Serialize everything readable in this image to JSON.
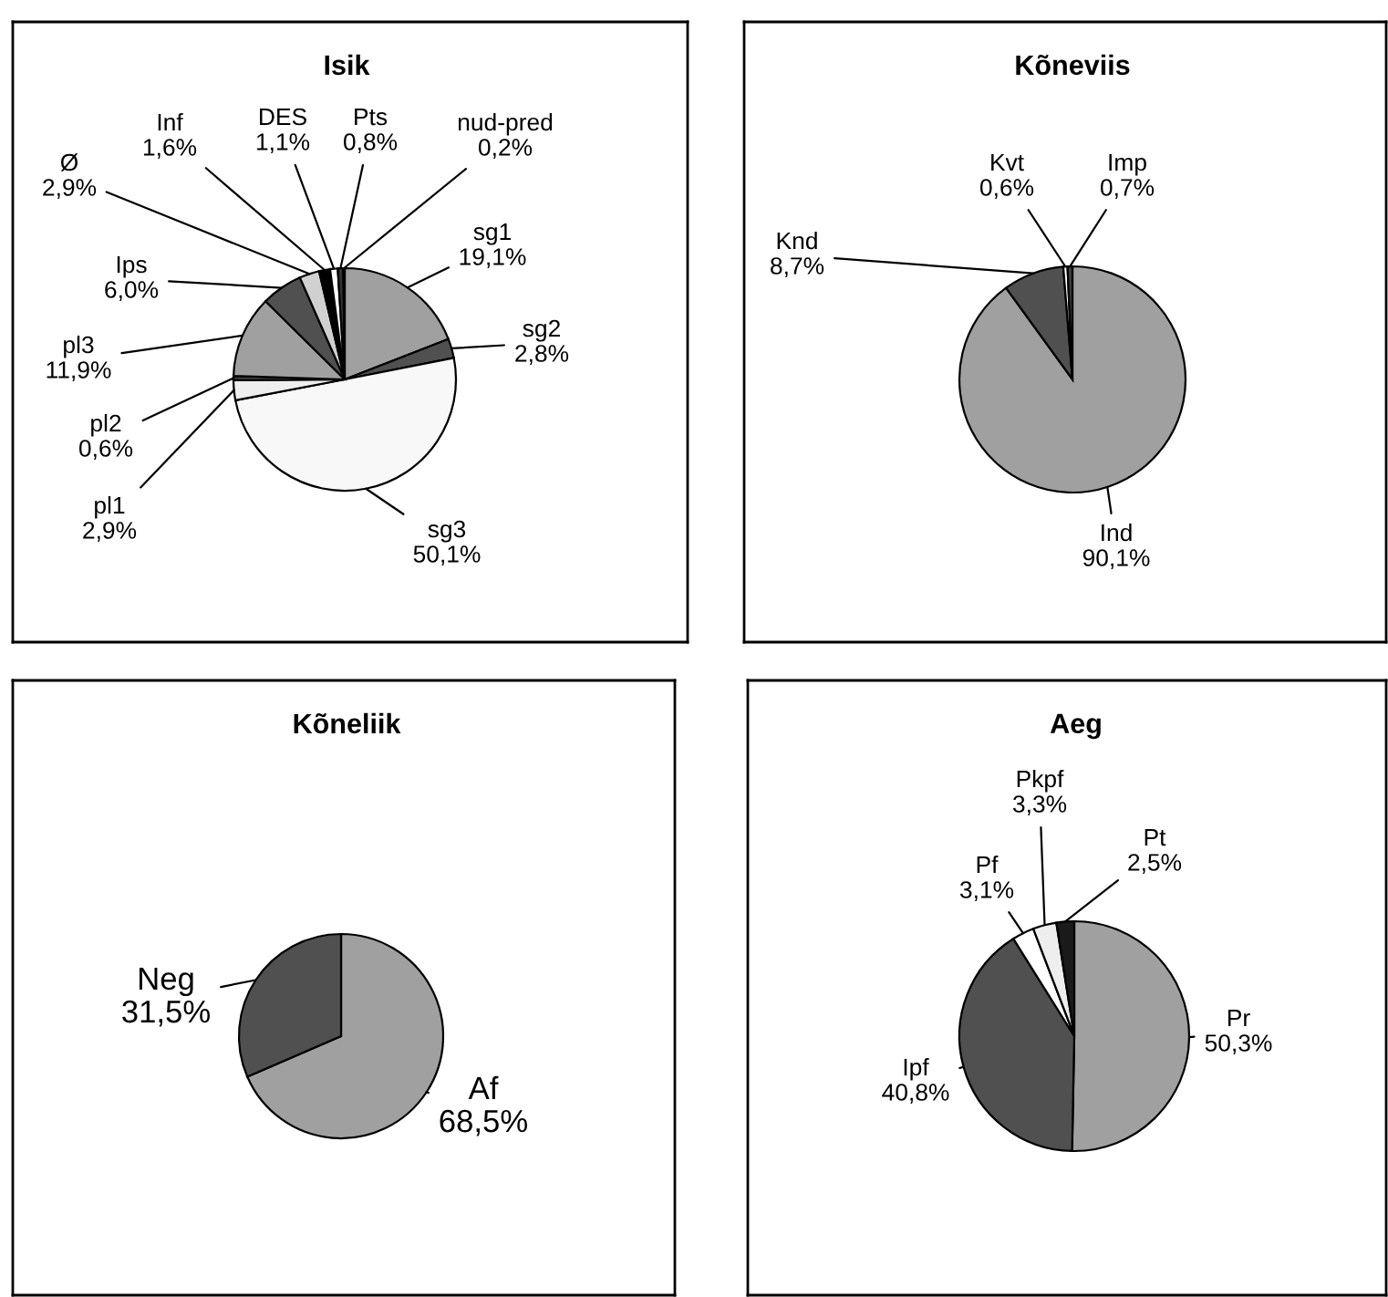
{
  "chart_data": [
    {
      "type": "pie",
      "title": "Isik",
      "categories": [
        "sg1",
        "sg2",
        "sg3",
        "pl1",
        "pl2",
        "pl3",
        "Ips",
        "Ø",
        "Inf",
        "DES",
        "Pts",
        "nud-pred"
      ],
      "values": [
        19.1,
        2.8,
        50.1,
        2.9,
        0.6,
        11.9,
        6.0,
        2.9,
        1.6,
        1.1,
        0.8,
        0.2
      ],
      "value_labels": [
        "19,1%",
        "2,8%",
        "50,1%",
        "2,9%",
        "0,6%",
        "11,9%",
        "6,0%",
        "2,9%",
        "1,6%",
        "1,1%",
        "0,8%",
        "0,2%"
      ],
      "colors": [
        "#a0a0a0",
        "#505050",
        "#f8f8f8",
        "#eeeeee",
        "#404040",
        "#a0a0a0",
        "#505050",
        "#d0d0d0",
        "#000000",
        "#ffffff",
        "#333333",
        "#ffffff"
      ],
      "legend": false
    },
    {
      "type": "pie",
      "title": "Kõneviis",
      "categories": [
        "Ind",
        "Knd",
        "Kvt",
        "Imp"
      ],
      "values": [
        90.1,
        8.7,
        0.6,
        0.7
      ],
      "value_labels": [
        "90,1%",
        "8,7%",
        "0,6%",
        "0,7%"
      ],
      "colors": [
        "#a0a0a0",
        "#505050",
        "#ffffff",
        "#404040"
      ],
      "legend": false
    },
    {
      "type": "pie",
      "title": "Kõneliik",
      "categories": [
        "Af",
        "Neg"
      ],
      "values": [
        68.5,
        31.5
      ],
      "value_labels": [
        "68,5%",
        "31,5%"
      ],
      "colors": [
        "#a0a0a0",
        "#505050"
      ],
      "legend": false
    },
    {
      "type": "pie",
      "title": "Aeg",
      "categories": [
        "Pr",
        "Ipf",
        "Pf",
        "Pkpf",
        "Pt"
      ],
      "values": [
        50.3,
        40.8,
        3.1,
        3.3,
        2.5
      ],
      "value_labels": [
        "50,3%",
        "40,8%",
        "3,1%",
        "3,3%",
        "2,5%"
      ],
      "colors": [
        "#a0a0a0",
        "#505050",
        "#ffffff",
        "#eeeeee",
        "#1a1a1a"
      ],
      "legend": false
    }
  ]
}
